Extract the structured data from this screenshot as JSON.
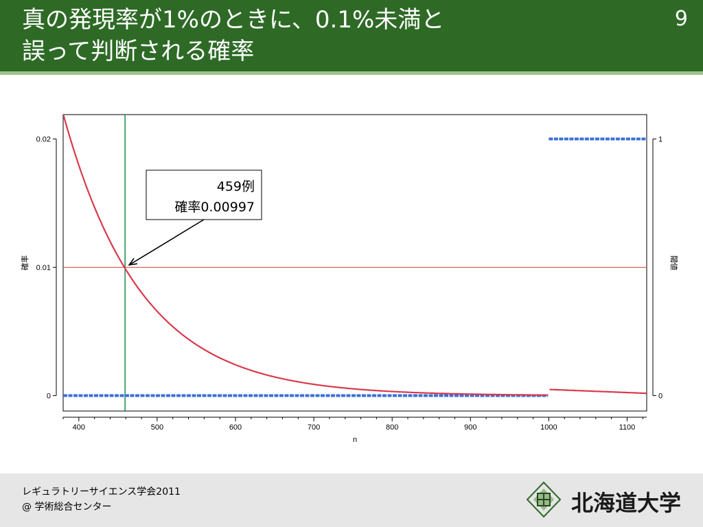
{
  "header": {
    "title": "真の発現率が1%のときに、0.1%未満と\n誤って判断される確率",
    "slide_number": "9"
  },
  "chart_data": {
    "type": "scatter",
    "xlabel": "n",
    "ylabel": "確率",
    "y2label": "閾値",
    "xlim": [
      380,
      1125
    ],
    "ylim": [
      -0.0012,
      0.0219
    ],
    "y2lim": [
      -0.06,
      1.095
    ],
    "xticks": [
      400,
      500,
      600,
      700,
      800,
      900,
      1000,
      1100
    ],
    "yticks": [
      0,
      0.01,
      0.02
    ],
    "ytick_labels": [
      "0",
      "0.01",
      "0.02"
    ],
    "y2ticks": [
      0,
      1
    ],
    "y2tick_labels": [
      "0",
      "1"
    ],
    "series": [
      {
        "role": "probability",
        "color": "#d9394a",
        "axis": "left",
        "segments": [
          {
            "x_start": 380,
            "x_end": 999,
            "model": "binomial_cdf",
            "p": 0.01,
            "threshold_rate": 0.001
          },
          {
            "x_start": 1001,
            "x_end": 1125,
            "y_start": 0.00048,
            "y_end": 0.00018
          }
        ]
      },
      {
        "role": "threshold",
        "color": "#3a6fd8",
        "axis": "right",
        "segments": [
          {
            "x_start": 380,
            "x_end": 999,
            "y": 0
          },
          {
            "x_start": 1000,
            "x_end": 1125,
            "y": 1
          }
        ]
      }
    ],
    "reference_lines": {
      "horizontal_y": 0.01,
      "horizontal_color": "#e0443c",
      "vertical_x": 459,
      "vertical_color": "#178a4a"
    },
    "annotation": {
      "line1": "459例",
      "line2": "確率0.00997",
      "point_x": 459,
      "point_y": 0.00997
    }
  },
  "footer": {
    "line1": "レギュラトリーサイエンス学会2011",
    "line2": "@ 学術総合センター",
    "organization": "北海道大学"
  }
}
